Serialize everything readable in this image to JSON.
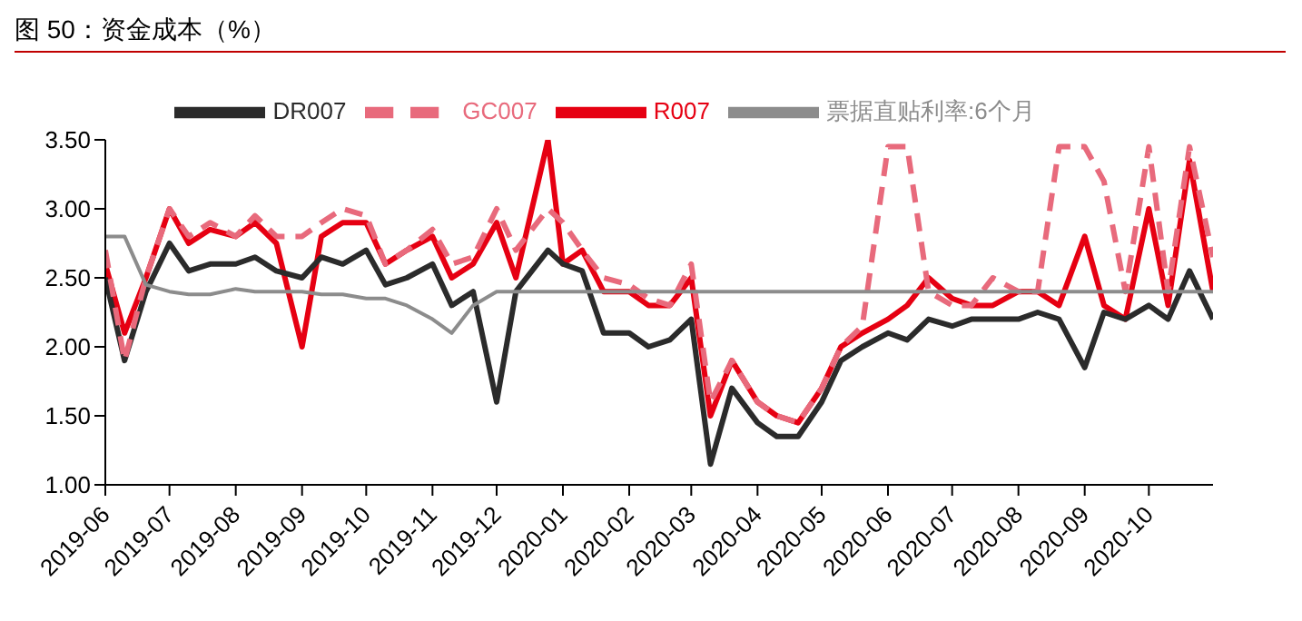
{
  "chart_data": {
    "type": "line",
    "title": "图 50：资金成本（%）",
    "x": [
      "2019-06-01",
      "2019-06-10",
      "2019-06-20",
      "2019-07-01",
      "2019-07-10",
      "2019-07-20",
      "2019-08-01",
      "2019-08-10",
      "2019-08-20",
      "2019-09-01",
      "2019-09-10",
      "2019-09-20",
      "2019-10-01",
      "2019-10-10",
      "2019-10-20",
      "2019-11-01",
      "2019-11-10",
      "2019-11-20",
      "2019-12-01",
      "2019-12-10",
      "2019-12-25",
      "2020-01-01",
      "2020-01-10",
      "2020-01-20",
      "2020-02-01",
      "2020-02-10",
      "2020-02-20",
      "2020-03-01",
      "2020-03-10",
      "2020-03-20",
      "2020-04-01",
      "2020-04-10",
      "2020-04-20",
      "2020-05-01",
      "2020-05-10",
      "2020-05-20",
      "2020-06-01",
      "2020-06-10",
      "2020-06-20",
      "2020-07-01",
      "2020-07-10",
      "2020-07-20",
      "2020-08-01",
      "2020-08-10",
      "2020-08-20",
      "2020-09-01",
      "2020-09-10",
      "2020-09-20",
      "2020-10-01",
      "2020-10-10",
      "2020-10-20",
      "2020-10-31"
    ],
    "series": [
      {
        "name": "R007",
        "color": "#e60012",
        "line_style": "solid",
        "values": [
          2.6,
          2.1,
          2.5,
          3.0,
          2.75,
          2.85,
          2.8,
          2.9,
          2.75,
          2.0,
          2.8,
          2.9,
          2.9,
          2.6,
          2.7,
          2.8,
          2.5,
          2.6,
          2.9,
          2.5,
          3.5,
          2.6,
          2.7,
          2.4,
          2.4,
          2.3,
          2.3,
          2.5,
          1.5,
          1.9,
          1.6,
          1.5,
          1.45,
          1.7,
          2.0,
          2.1,
          2.2,
          2.3,
          2.5,
          2.35,
          2.3,
          2.3,
          2.4,
          2.4,
          2.3,
          2.8,
          2.3,
          2.2,
          3.0,
          2.3,
          3.35,
          2.4
        ]
      },
      {
        "name": "DR007",
        "color": "#2b2b2b",
        "line_style": "solid",
        "values": [
          2.5,
          1.9,
          2.4,
          2.75,
          2.55,
          2.6,
          2.6,
          2.65,
          2.55,
          2.5,
          2.65,
          2.6,
          2.7,
          2.45,
          2.5,
          2.6,
          2.3,
          2.4,
          1.6,
          2.4,
          2.7,
          2.6,
          2.55,
          2.1,
          2.1,
          2.0,
          2.05,
          2.2,
          1.15,
          1.7,
          1.45,
          1.35,
          1.35,
          1.6,
          1.9,
          2.0,
          2.1,
          2.05,
          2.2,
          2.15,
          2.2,
          2.2,
          2.2,
          2.25,
          2.2,
          1.85,
          2.25,
          2.2,
          2.3,
          2.2,
          2.55,
          2.2
        ]
      },
      {
        "name": "GC007",
        "color": "#e86a7c",
        "line_style": "dashed",
        "values": [
          2.7,
          1.9,
          2.5,
          3.0,
          2.8,
          2.9,
          2.8,
          2.95,
          2.8,
          2.8,
          2.9,
          3.0,
          2.95,
          2.6,
          2.7,
          2.85,
          2.6,
          2.65,
          3.0,
          2.7,
          3.0,
          2.9,
          2.7,
          2.5,
          2.45,
          2.35,
          2.3,
          2.6,
          1.6,
          1.9,
          1.6,
          1.5,
          1.45,
          1.7,
          2.0,
          2.15,
          3.45,
          3.45,
          2.4,
          2.3,
          2.3,
          2.5,
          2.4,
          2.4,
          3.45,
          3.45,
          3.2,
          2.4,
          3.45,
          2.4,
          3.45,
          2.65
        ]
      },
      {
        "name": "票据直贴利率:6个月",
        "color": "#8c8c8c",
        "line_style": "solid",
        "values": [
          2.8,
          2.8,
          2.45,
          2.4,
          2.38,
          2.38,
          2.42,
          2.4,
          2.4,
          2.4,
          2.38,
          2.38,
          2.35,
          2.35,
          2.3,
          2.2,
          2.1,
          2.3,
          2.4,
          2.4,
          2.4,
          2.4,
          2.4,
          2.4,
          2.4,
          2.4,
          2.4,
          2.4,
          2.4,
          2.4,
          2.4,
          2.4,
          2.4,
          2.4,
          2.4,
          2.4,
          2.4,
          2.4,
          2.4,
          2.4,
          2.4,
          2.4,
          2.4,
          2.4,
          2.4,
          2.4,
          2.4,
          2.4,
          2.4,
          2.4,
          2.4,
          2.4
        ]
      }
    ],
    "xlim": [
      "2019-06-01",
      "2020-10-31"
    ],
    "xticks": [
      "2019-06",
      "2019-07",
      "2019-08",
      "2019-09",
      "2019-10",
      "2019-11",
      "2019-12",
      "2020-01",
      "2020-02",
      "2020-03",
      "2020-04",
      "2020-05",
      "2020-06",
      "2020-07",
      "2020-08",
      "2020-09",
      "2020-10"
    ],
    "ylim": [
      1,
      3.5
    ],
    "yticks": [
      {
        "value": 1,
        "label": "1.00"
      },
      {
        "value": 1.5,
        "label": "1.50"
      },
      {
        "value": 2,
        "label": "2.00"
      },
      {
        "value": 2.5,
        "label": "2.50"
      },
      {
        "value": 3,
        "label": "3.00"
      },
      {
        "value": 3.5,
        "label": "3.50"
      }
    ],
    "legend": "top"
  }
}
